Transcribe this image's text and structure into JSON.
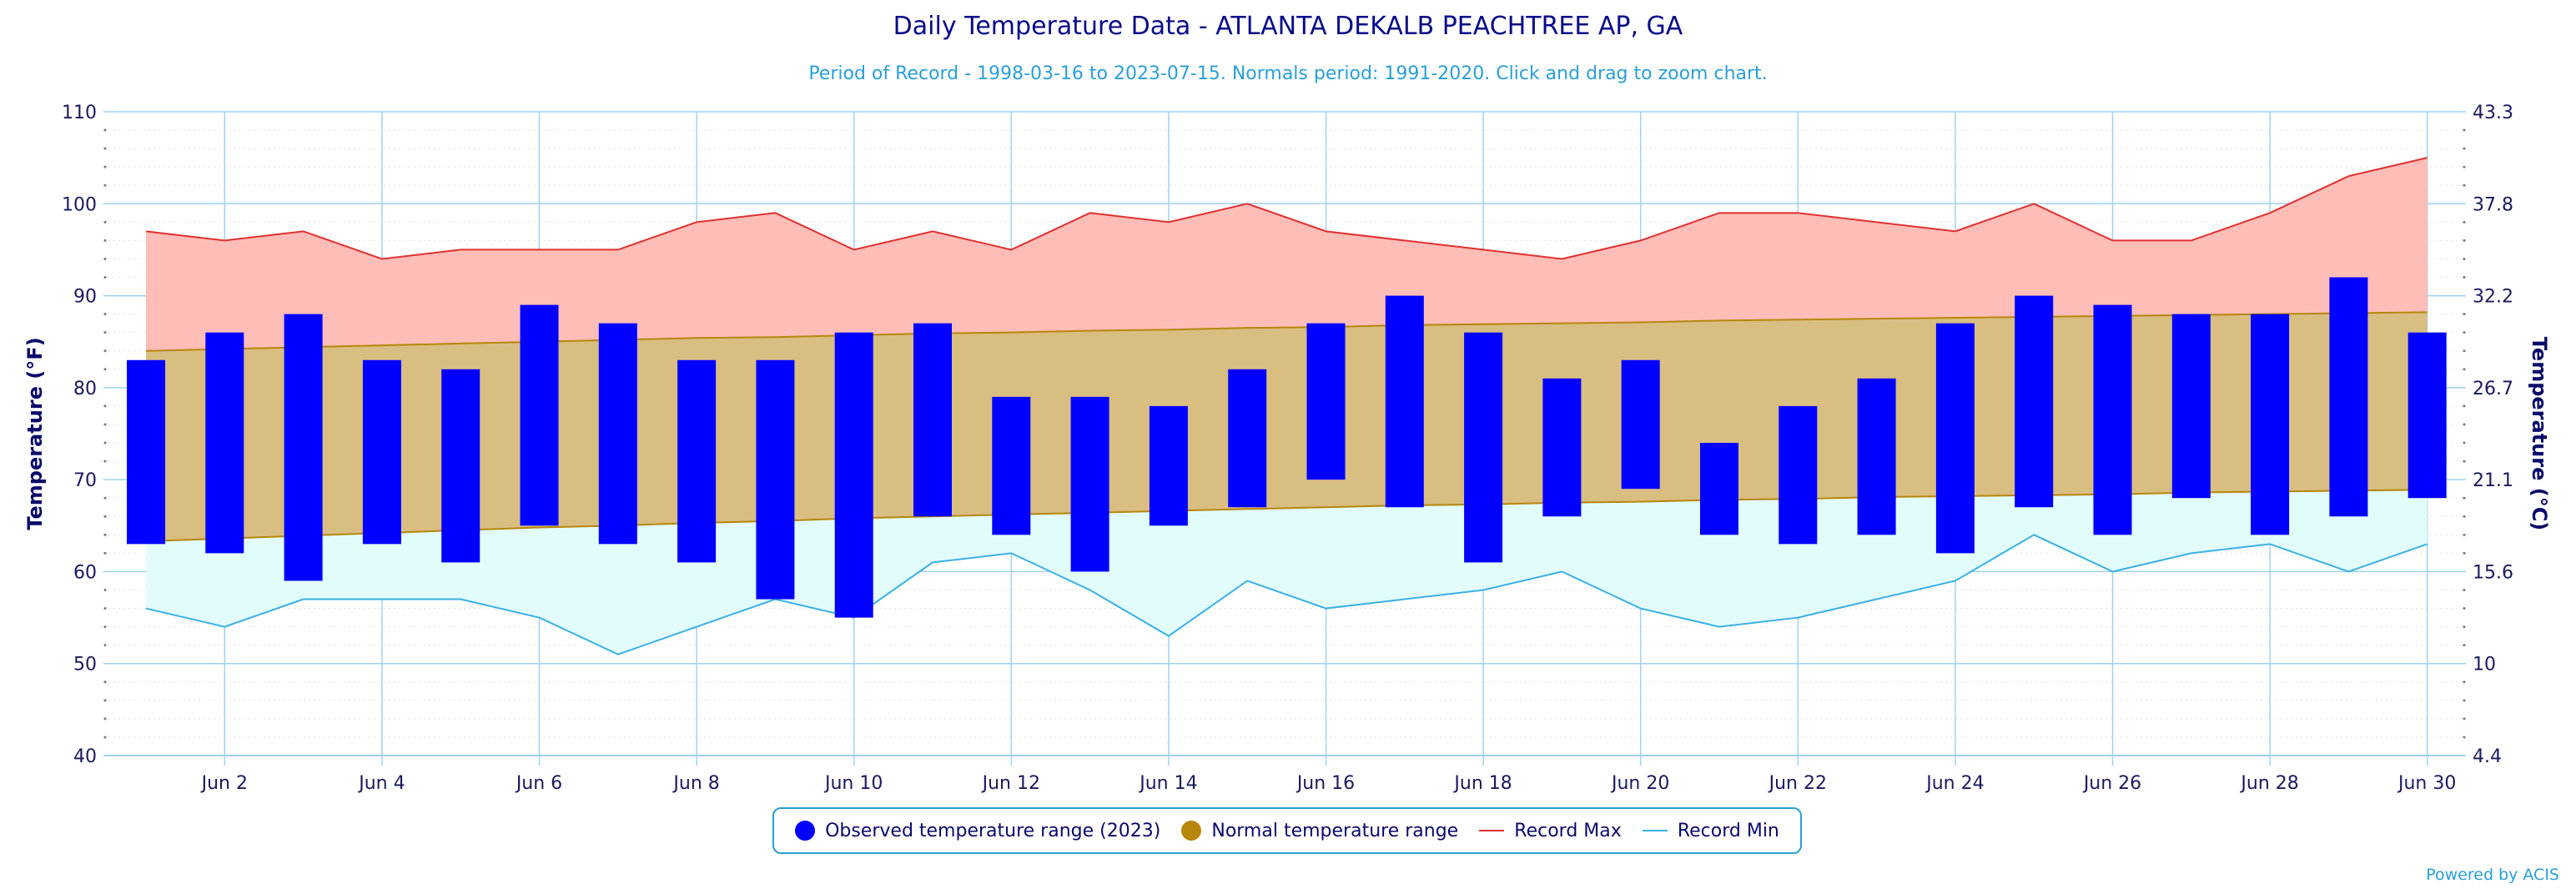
{
  "header": {
    "title": "Daily Temperature Data - ATLANTA DEKALB PEACHTREE AP, GA",
    "subtitle": "Period of Record - 1998-03-16 to 2023-07-15. Normals period: 1991-2020. Click and drag to zoom chart."
  },
  "legend": {
    "observed": "Observed temperature range (2023)",
    "normal": "Normal temperature range",
    "record_max": "Record Max",
    "record_min": "Record Min"
  },
  "credit": "Powered by ACIS",
  "colors": {
    "observed": "#0000ff",
    "normal_fill": "#d9be82",
    "normal_line": "#b8860b",
    "record_max_fill": "#ffbdb8",
    "record_max_line": "#e03030",
    "record_min_fill": "#e2fcfc",
    "record_min_line": "#3ab0e6",
    "grid": "#9fd3ee"
  },
  "chart_data": {
    "type": "bar",
    "title": "Daily Temperature Data - ATLANTA DEKALB PEACHTREE AP, GA",
    "ylabel": "Temperature (°F)",
    "ylabel_right": "Temperature (°C)",
    "ylim": [
      40,
      110
    ],
    "yticks": [
      40,
      50,
      60,
      70,
      80,
      90,
      100,
      110
    ],
    "yticks_right": [
      "4.4",
      "10",
      "15.6",
      "21.1",
      "26.7",
      "32.2",
      "37.8",
      "43.3"
    ],
    "x_label_days": [
      2,
      4,
      6,
      8,
      10,
      12,
      14,
      16,
      18,
      20,
      22,
      24,
      26,
      28,
      30
    ],
    "x_tick_labels": [
      "Jun 2",
      "Jun 4",
      "Jun 6",
      "Jun 8",
      "Jun 10",
      "Jun 12",
      "Jun 14",
      "Jun 16",
      "Jun 18",
      "Jun 20",
      "Jun 22",
      "Jun 24",
      "Jun 26",
      "Jun 28",
      "Jun 30"
    ],
    "grid": true,
    "legend_position": "bottom-center",
    "days": [
      1,
      2,
      3,
      4,
      5,
      6,
      7,
      8,
      9,
      10,
      11,
      12,
      13,
      14,
      15,
      16,
      17,
      18,
      19,
      20,
      21,
      22,
      23,
      24,
      25,
      26,
      27,
      28,
      29,
      30
    ],
    "series": [
      {
        "name": "Observed temperature range (2023)",
        "high": [
          83,
          86,
          88,
          83,
          82,
          89,
          87,
          83,
          83,
          86,
          87,
          79,
          79,
          78,
          82,
          87,
          90,
          86,
          81,
          83,
          74,
          78,
          81,
          87,
          90,
          89,
          88,
          88,
          92,
          86
        ],
        "low": [
          63,
          62,
          59,
          63,
          61,
          65,
          63,
          61,
          57,
          55,
          66,
          64,
          60,
          65,
          67,
          70,
          67,
          61,
          66,
          69,
          64,
          63,
          64,
          62,
          67,
          64,
          68,
          64,
          66,
          68
        ]
      },
      {
        "name": "Normal temperature range",
        "high": [
          84,
          84.2,
          84.4,
          84.6,
          84.8,
          85,
          85.2,
          85.4,
          85.5,
          85.7,
          85.9,
          86,
          86.2,
          86.3,
          86.5,
          86.6,
          86.8,
          86.9,
          87,
          87.1,
          87.3,
          87.4,
          87.5,
          87.6,
          87.7,
          87.8,
          87.9,
          88,
          88.1,
          88.2
        ],
        "low": [
          63.3,
          63.6,
          63.9,
          64.2,
          64.5,
          64.8,
          65,
          65.3,
          65.5,
          65.8,
          66,
          66.2,
          66.4,
          66.6,
          66.8,
          67,
          67.2,
          67.3,
          67.5,
          67.6,
          67.8,
          67.9,
          68.1,
          68.2,
          68.3,
          68.4,
          68.6,
          68.7,
          68.8,
          68.9
        ]
      },
      {
        "name": "Record Max",
        "values": [
          97,
          96,
          97,
          94,
          95,
          95,
          95,
          98,
          99,
          95,
          97,
          95,
          99,
          98,
          100,
          97,
          96,
          95,
          94,
          96,
          99,
          99,
          98,
          97,
          100,
          96,
          96,
          99,
          103,
          105
        ]
      },
      {
        "name": "Record Min",
        "values": [
          56,
          54,
          57,
          57,
          57,
          55,
          51,
          54,
          57,
          55,
          61,
          62,
          58,
          53,
          59,
          56,
          57,
          58,
          60,
          56,
          54,
          55,
          57,
          59,
          64,
          60,
          62,
          63,
          60,
          63
        ]
      }
    ]
  }
}
